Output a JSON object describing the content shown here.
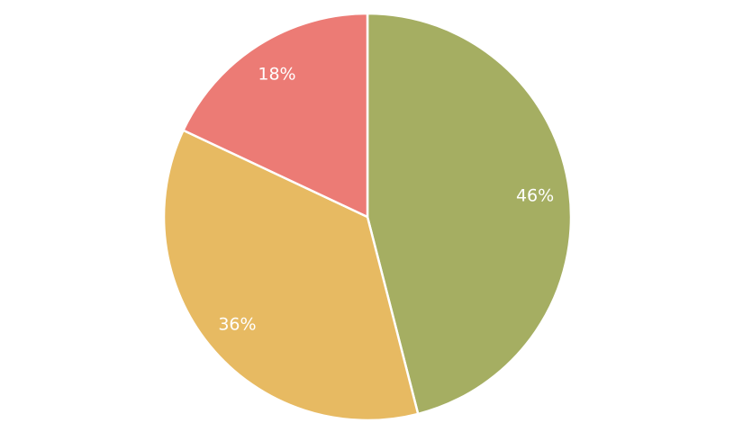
{
  "chart_data": {
    "type": "pie",
    "title": "",
    "start": "top",
    "direction": "clockwise",
    "slices": [
      {
        "value": 46,
        "label": "46%",
        "color": "#A5AE62"
      },
      {
        "value": 36,
        "label": "36%",
        "color": "#E7BA62"
      },
      {
        "value": 18,
        "label": "18%",
        "color": "#EC7B75"
      }
    ],
    "legend": "none"
  }
}
